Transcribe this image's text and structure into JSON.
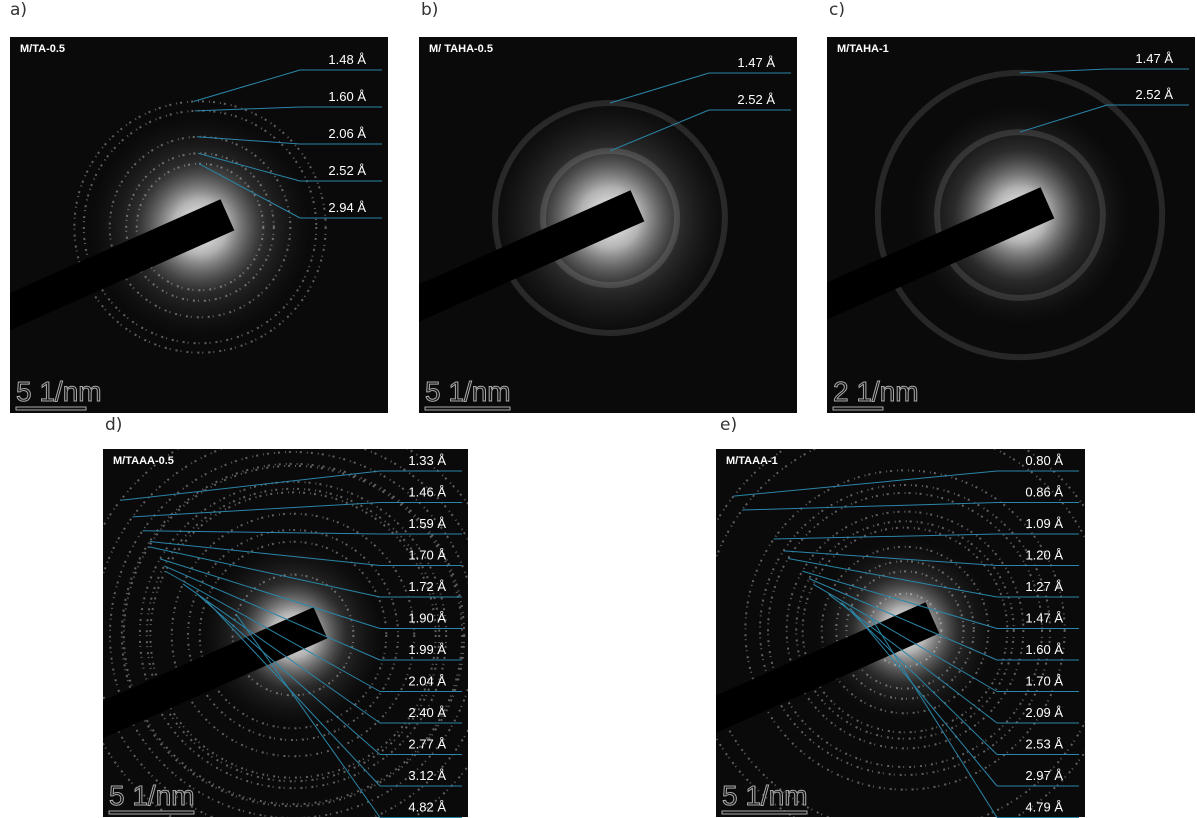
{
  "panels": [
    {
      "letter": "a)",
      "sample": "M/TA-0.5",
      "scale": "5 1/nm",
      "spacings": [
        "1.48 Å",
        "1.60 Å",
        "2.06 Å",
        "2.52 Å",
        "2.94 Å"
      ]
    },
    {
      "letter": "b)",
      "sample": "M/ TAHA-0.5",
      "scale": "5 1/nm",
      "spacings": [
        "1.47 Å",
        "2.52 Å"
      ]
    },
    {
      "letter": "c)",
      "sample": "M/TAHA-1",
      "scale": "2 1/nm",
      "spacings": [
        "1.47 Å",
        "2.52 Å"
      ]
    },
    {
      "letter": "d)",
      "sample": "M/TAAA-0.5",
      "scale": "5 1/nm",
      "spacings": [
        "1.33 Å",
        "1.46 Å",
        "1.59 Å",
        "1.70 Å",
        "1.72 Å",
        "1.90 Å",
        "1.99 Å",
        "2.04 Å",
        "2.40 Å",
        "2.77 Å",
        "3.12 Å",
        "4.82 Å"
      ]
    },
    {
      "letter": "e)",
      "sample": "M/TAAA-1",
      "scale": "5 1/nm",
      "spacings": [
        "0.80 Å",
        "0.86 Å",
        "1.09 Å",
        "1.20 Å",
        "1.27 Å",
        "1.47 Å",
        "1.60 Å",
        "1.70 Å",
        "2.09 Å",
        "2.53 Å",
        "2.97 Å",
        "4.79 Å"
      ]
    }
  ]
}
